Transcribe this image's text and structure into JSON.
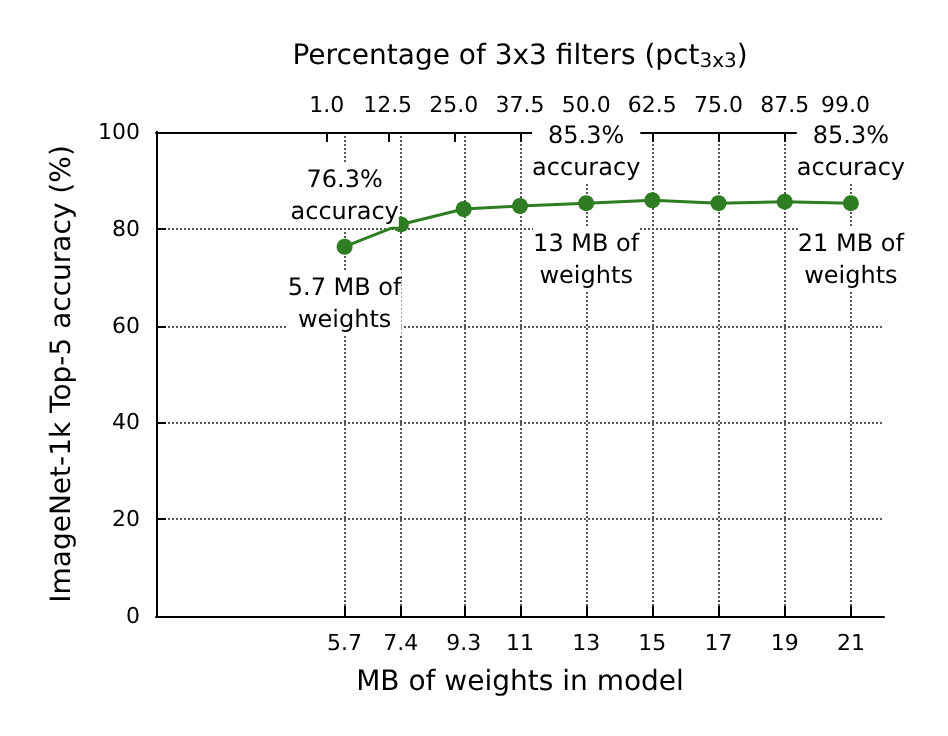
{
  "chart_data": {
    "type": "line",
    "x2label": "Percentage of 3x3 filters (pct$_{3x3}$)",
    "xlabel": "MB of weights in model",
    "ylabel": "ImageNet-1k Top-5 accuracy (%)",
    "x": [
      5.7,
      7.4,
      9.3,
      11,
      13,
      15,
      17,
      19,
      21
    ],
    "series": [
      {
        "color": "#2e7d23",
        "values": [
          76.3,
          80.9,
          84.1,
          84.7,
          85.3,
          85.9,
          85.3,
          85.6,
          85.3
        ]
      }
    ],
    "xlim": [
      0,
      22
    ],
    "xticks": [
      5.7,
      7.4,
      9.3,
      11,
      13,
      15,
      17,
      19,
      21
    ],
    "x2lim": [
      -31.25,
      106.25
    ],
    "x2ticks": [
      {
        "value": 1,
        "label": "1.0"
      },
      12.5,
      {
        "value": 25,
        "label": "25.0"
      },
      37.5,
      {
        "value": 50,
        "label": "50.0"
      },
      62.5,
      {
        "value": 75,
        "label": "75.0"
      },
      87.5,
      {
        "value": 99,
        "label": "99.0"
      }
    ],
    "ylim": [
      0,
      100
    ],
    "yticks": [
      0,
      20,
      40,
      60,
      80,
      100
    ],
    "grid": true,
    "marker": "circle",
    "line_style": "solid",
    "annotations": [
      {
        "text": "76.3%\naccuracy",
        "x": 5.7,
        "y": 76.3
      },
      {
        "text": "5.7 MB of\nweights",
        "x": 5.7,
        "y": 76.3
      },
      {
        "text": "85.3%\naccuracy",
        "x": 13,
        "y": 85.3
      },
      {
        "text": "13 MB of\nweights",
        "x": 13,
        "y": 85.3
      },
      {
        "text": "85.3%\naccuracy",
        "x": 21,
        "y": 85.3
      },
      {
        "text": "21 MB of\nweights",
        "x": 21,
        "y": 85.3
      }
    ]
  }
}
